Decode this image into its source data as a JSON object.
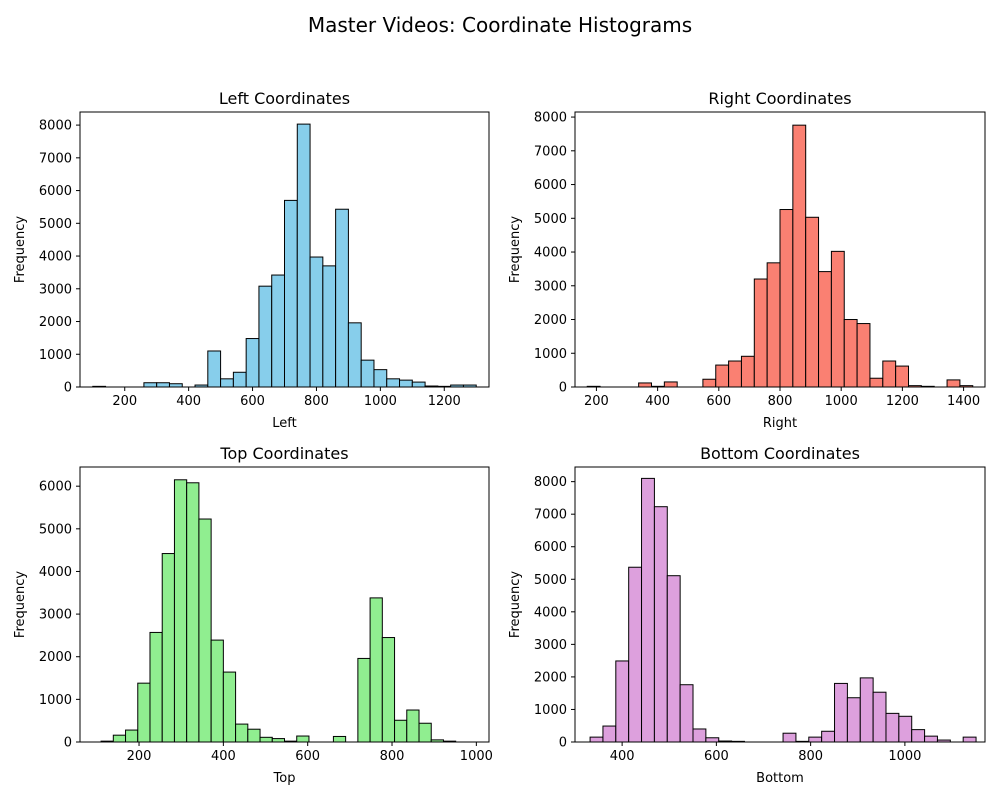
{
  "title": "Master Videos: Coordinate Histograms",
  "chart_data": [
    {
      "type": "bar",
      "title": "Left Coordinates",
      "xlabel": "Left",
      "ylabel": "Frequency",
      "color": "#87ceeb",
      "edge_color": "#000000",
      "xlim": [
        60,
        1340
      ],
      "ylim": [
        0,
        8400
      ],
      "xticks": [
        200,
        400,
        600,
        800,
        1000,
        1200
      ],
      "yticks": [
        0,
        1000,
        2000,
        3000,
        4000,
        5000,
        6000,
        7000,
        8000
      ],
      "bin_start": 100,
      "bin_width": 40,
      "values": [
        20,
        0,
        0,
        0,
        130,
        130,
        100,
        0,
        60,
        1100,
        250,
        450,
        1480,
        3080,
        3420,
        5700,
        8030,
        3970,
        3700,
        5430,
        1960,
        820,
        530,
        250,
        210,
        150,
        30,
        20,
        60,
        60
      ]
    },
    {
      "type": "bar",
      "title": "Right Coordinates",
      "xlabel": "Right",
      "ylabel": "Frequency",
      "color": "#fa8072",
      "edge_color": "#000000",
      "xlim": [
        130,
        1470
      ],
      "ylim": [
        0,
        8150
      ],
      "xticks": [
        200,
        400,
        600,
        800,
        1000,
        1200,
        1400
      ],
      "yticks": [
        0,
        1000,
        2000,
        3000,
        4000,
        5000,
        6000,
        7000,
        8000
      ],
      "bin_start": 170,
      "bin_width": 42,
      "values": [
        20,
        0,
        0,
        0,
        120,
        20,
        150,
        0,
        0,
        230,
        650,
        770,
        910,
        3200,
        3680,
        5260,
        7760,
        5030,
        3420,
        4020,
        2000,
        1880,
        260,
        770,
        620,
        40,
        20,
        0,
        210,
        40
      ]
    },
    {
      "type": "bar",
      "title": "Top Coordinates",
      "xlabel": "Top",
      "ylabel": "Frequency",
      "color": "#90ee90",
      "edge_color": "#000000",
      "xlim": [
        60,
        1030
      ],
      "ylim": [
        0,
        6450
      ],
      "xticks": [
        200,
        400,
        600,
        800,
        1000
      ],
      "yticks": [
        0,
        1000,
        2000,
        3000,
        4000,
        5000,
        6000
      ],
      "bin_start": 110,
      "bin_width": 29,
      "values": [
        20,
        160,
        280,
        1380,
        2570,
        4420,
        6150,
        6080,
        5230,
        2390,
        1640,
        420,
        300,
        110,
        80,
        20,
        140,
        0,
        0,
        130,
        0,
        1960,
        3380,
        2450,
        510,
        750,
        440,
        50,
        20,
        0
      ]
    },
    {
      "type": "bar",
      "title": "Bottom Coordinates",
      "xlabel": "Bottom",
      "ylabel": "Frequency",
      "color": "#dda0dd",
      "edge_color": "#000000",
      "xlim": [
        300,
        1170
      ],
      "ylim": [
        0,
        8450
      ],
      "xticks": [
        400,
        600,
        800,
        1000
      ],
      "yticks": [
        0,
        1000,
        2000,
        3000,
        4000,
        5000,
        6000,
        7000,
        8000
      ],
      "bin_start": 332,
      "bin_width": 27.3,
      "values": [
        150,
        490,
        2490,
        5370,
        8100,
        7230,
        5110,
        1760,
        400,
        130,
        30,
        20,
        0,
        0,
        0,
        270,
        20,
        150,
        330,
        1800,
        1360,
        1970,
        1530,
        880,
        790,
        380,
        180,
        60,
        0,
        150
      ]
    }
  ]
}
